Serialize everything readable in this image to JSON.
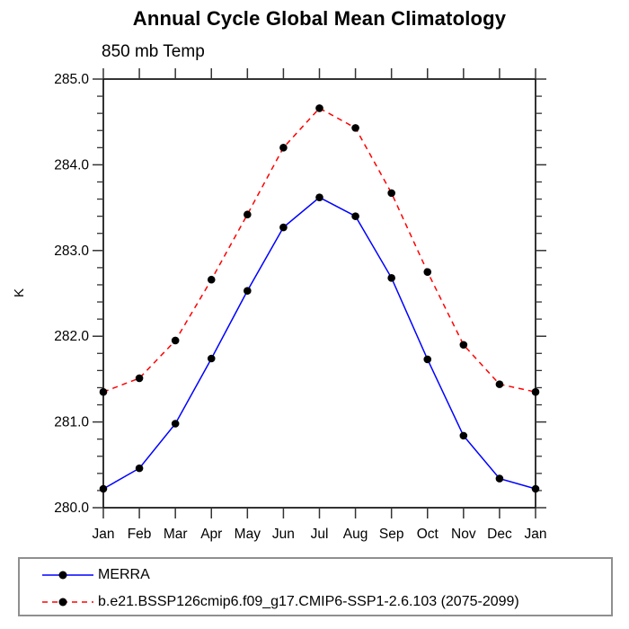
{
  "page": {
    "background": "#ffffff"
  },
  "chart_data": {
    "type": "line",
    "title": "Annual Cycle Global Mean Climatology",
    "subtitle": "850 mb Temp",
    "ylabel": "K",
    "xlabel": "",
    "x_categories": [
      "Jan",
      "Feb",
      "Mar",
      "Apr",
      "May",
      "Jun",
      "Jul",
      "Aug",
      "Sep",
      "Oct",
      "Nov",
      "Dec",
      "Jan"
    ],
    "ylim": [
      280.0,
      285.0
    ],
    "ytick_major_step": 1.0,
    "ytick_minor_step": 0.2,
    "ytick_labels": [
      "280.0",
      "281.0",
      "282.0",
      "283.0",
      "284.0",
      "285.0"
    ],
    "grid": false,
    "legend_position": "bottom",
    "frame_color": "#000000",
    "tick_color": "#333333",
    "marker_color": "#000000",
    "series": [
      {
        "name": "MERRA",
        "color": "#0000ff",
        "line_style": "solid",
        "marker": "circle",
        "values": [
          280.22,
          280.46,
          280.98,
          281.74,
          282.53,
          283.27,
          283.62,
          283.4,
          282.68,
          281.73,
          280.84,
          280.34,
          280.22
        ]
      },
      {
        "name": "b.e21.BSSP126cmip6.f09_g17.CMIP6-SSP1-2.6.103 (2075-2099)",
        "color": "#ff0000",
        "line_style": "dashed",
        "marker": "circle",
        "values": [
          281.35,
          281.51,
          281.95,
          282.66,
          283.42,
          284.2,
          284.66,
          284.43,
          283.67,
          282.75,
          281.9,
          281.44,
          281.35
        ]
      }
    ]
  }
}
